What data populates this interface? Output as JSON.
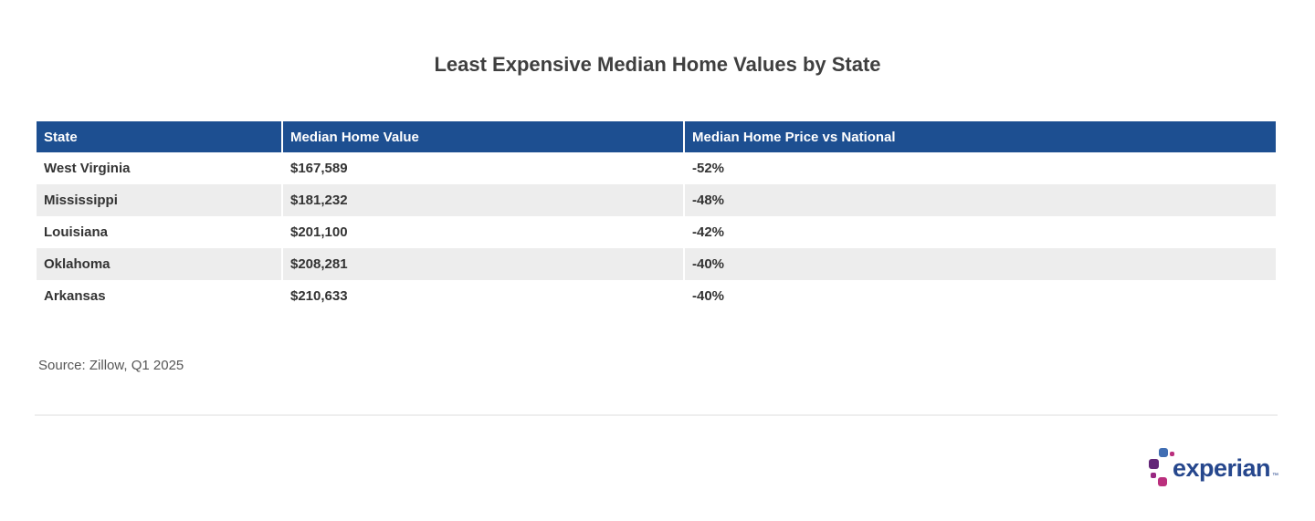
{
  "chart_data": {
    "type": "table",
    "title": "Least Expensive Median Home Values by State",
    "columns": [
      "State",
      "Median Home Value",
      "Median Home Price vs National"
    ],
    "rows": [
      [
        "West Virginia",
        "$167,589",
        "-52%"
      ],
      [
        "Mississippi",
        "$181,232",
        "-48%"
      ],
      [
        "Louisiana",
        "$201,100",
        "-42%"
      ],
      [
        "Oklahoma",
        "$208,281",
        "-40%"
      ],
      [
        "Arkansas",
        "$210,633",
        "-40%"
      ]
    ],
    "values_numeric": {
      "median_home_value": [
        167589,
        181232,
        201100,
        208281,
        210633
      ],
      "vs_national_pct": [
        -52,
        -48,
        -42,
        -40,
        -40
      ]
    },
    "source": "Source: Zillow, Q1 2025",
    "layout": {
      "header_position": "top",
      "striped_rows": true
    }
  },
  "logo": {
    "text": "experian",
    "trademark": "™"
  },
  "colors": {
    "header_bg": "#1d4f91",
    "row_alt_bg": "#ededed",
    "title_text": "#3f3f3f",
    "cell_text": "#333333",
    "source_text": "#565656",
    "logo_navy": "#26478d",
    "logo_blue": "#406eb3",
    "logo_purple": "#632678",
    "logo_magenta": "#ba2f7d",
    "logo_plum": "#982881"
  }
}
